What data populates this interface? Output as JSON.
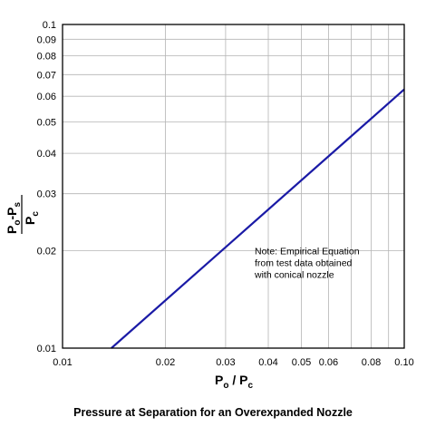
{
  "caption": "Pressure at Separation for an Overexpanded Nozzle",
  "chart_data": {
    "type": "line",
    "title": "",
    "xlabel": {
      "main": "P",
      "sub1": "o",
      "sep": " / P",
      "sub2": "c"
    },
    "ylabel": {
      "num_main1": "P",
      "num_sub1": "o",
      "num_sep": "-P",
      "num_sub2": "s",
      "den_main": "P",
      "den_sub": "c"
    },
    "xscale": "log",
    "yscale": "log",
    "xlim": [
      0.01,
      0.1
    ],
    "ylim": [
      0.01,
      0.1
    ],
    "grid": true,
    "x_ticks": [
      "0.01",
      "0.02",
      "0.03",
      "0.04",
      "0.05",
      "0.06",
      "0.08",
      "0.10"
    ],
    "y_ticks": [
      "0.01",
      "0.02",
      "0.03",
      "0.04",
      "0.05",
      "0.06",
      "0.07",
      "0.08",
      "0.09",
      "0.1"
    ],
    "x_tick_values": [
      0.01,
      0.02,
      0.03,
      0.04,
      0.05,
      0.06,
      0.08,
      0.1
    ],
    "y_tick_values": [
      0.01,
      0.02,
      0.03,
      0.04,
      0.05,
      0.06,
      0.07,
      0.08,
      0.09,
      0.1
    ],
    "x_grid_values": [
      0.02,
      0.03,
      0.04,
      0.05,
      0.06,
      0.07,
      0.08,
      0.09
    ],
    "y_grid_values": [
      0.02,
      0.03,
      0.04,
      0.05,
      0.06,
      0.07,
      0.08,
      0.09
    ],
    "series": [
      {
        "color": "#1a1aa6",
        "x": [
          0.0139,
          0.1
        ],
        "y": [
          0.01,
          0.063
        ]
      }
    ],
    "annotation": {
      "lines": [
        "Note: Empirical Equation",
        "from test data obtained",
        "with conical nozzle"
      ],
      "x": 0.0365,
      "y": 0.0195
    },
    "colors": {
      "line": "#1a1aa6",
      "axis": "#000000",
      "grid": "#b4b4b4"
    }
  }
}
